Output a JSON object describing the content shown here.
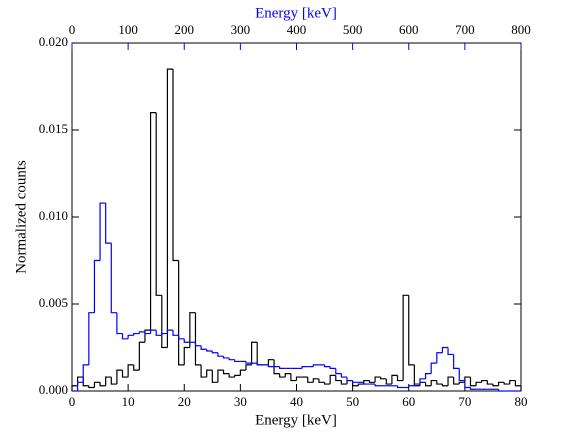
{
  "chart_data": {
    "type": "histogram",
    "xlabel": "Energy [keV]",
    "x2label": "Energy [keV]",
    "ylabel": "Normalized counts",
    "xlim": [
      0,
      80
    ],
    "xticks": [
      0,
      10,
      20,
      30,
      40,
      50,
      60,
      70,
      80
    ],
    "x2lim": [
      0,
      800
    ],
    "x2ticks": [
      0,
      100,
      200,
      300,
      400,
      500,
      600,
      700,
      800
    ],
    "x2color": "#0000ff",
    "ylim": [
      0,
      0.02
    ],
    "yticks": [
      {
        "value": 0,
        "label": "0.000"
      },
      {
        "value": 0.005,
        "label": "0.005"
      },
      {
        "value": 0.01,
        "label": "0.010"
      },
      {
        "value": 0.015,
        "label": "0.015"
      },
      {
        "value": 0.02,
        "label": "0.020"
      }
    ],
    "series": [
      {
        "color": "#000000",
        "axis": "x",
        "bins": [
          0,
          1,
          2,
          3,
          4,
          5,
          6,
          7,
          8,
          9,
          10,
          11,
          12,
          13,
          14,
          15,
          16,
          17,
          18,
          19,
          20,
          21,
          22,
          23,
          24,
          25,
          26,
          27,
          28,
          29,
          30,
          31,
          32,
          33,
          34,
          35,
          36,
          37,
          38,
          39,
          40,
          41,
          42,
          43,
          44,
          45,
          46,
          47,
          48,
          49,
          50,
          51,
          52,
          53,
          54,
          55,
          56,
          57,
          58,
          59,
          60,
          61,
          62,
          63,
          64,
          65,
          66,
          67,
          68,
          69,
          70,
          71,
          72,
          73,
          74,
          75,
          76,
          77,
          78,
          79,
          80
        ],
        "values": [
          0.0003,
          0.0008,
          0.0003,
          0.0002,
          0.0005,
          0.0003,
          0.0008,
          0.0004,
          0.0012,
          0.0008,
          0.0015,
          0.0012,
          0.0028,
          0.0035,
          0.016,
          0.0055,
          0.0025,
          0.0185,
          0.0075,
          0.0015,
          0.0025,
          0.0045,
          0.0015,
          0.0008,
          0.0012,
          0.0005,
          0.0012,
          0.001,
          0.0008,
          0.0009,
          0.0012,
          0.0015,
          0.0028,
          0.0015,
          0.0015,
          0.0018,
          0.001,
          0.0008,
          0.001,
          0.0006,
          0.0008,
          0.0008,
          0.0005,
          0.0007,
          0.0005,
          0.0004,
          0.0009,
          0.0006,
          0.0004,
          0.0006,
          0.0003,
          0.0004,
          0.0006,
          0.0005,
          0.0008,
          0.0007,
          0.0004,
          0.0009,
          0.0006,
          0.0055,
          0.0015,
          0.0003,
          0.0005,
          0.0003,
          0.0006,
          0.0004,
          0.0003,
          0.0008,
          0.0004,
          0.0005,
          0.0008,
          0.0003,
          0.0005,
          0.0006,
          0.0004,
          0.0003,
          0.0005,
          0.0004,
          0.0006,
          0.0003
        ]
      },
      {
        "color": "#0000ff",
        "axis": "x2",
        "bins": [
          0,
          10,
          20,
          30,
          40,
          50,
          60,
          70,
          80,
          90,
          100,
          110,
          120,
          130,
          140,
          150,
          160,
          170,
          180,
          190,
          200,
          210,
          220,
          230,
          240,
          250,
          260,
          270,
          280,
          290,
          300,
          310,
          320,
          330,
          340,
          350,
          360,
          370,
          380,
          390,
          400,
          410,
          420,
          430,
          440,
          450,
          460,
          470,
          480,
          490,
          500,
          510,
          520,
          530,
          540,
          550,
          560,
          570,
          580,
          590,
          600,
          610,
          620,
          630,
          640,
          650,
          660,
          670,
          680,
          690,
          700,
          710,
          720,
          730,
          740,
          750,
          760,
          770,
          780,
          790,
          800
        ],
        "values": [
          0,
          0.0005,
          0.0015,
          0.0045,
          0.0075,
          0.0108,
          0.0085,
          0.0045,
          0.0033,
          0.003,
          0.0032,
          0.0033,
          0.0034,
          0.0033,
          0.0035,
          0.0032,
          0.0033,
          0.0035,
          0.0032,
          0.003,
          0.0028,
          0.0028,
          0.0026,
          0.0024,
          0.0023,
          0.0022,
          0.002,
          0.0019,
          0.0018,
          0.0017,
          0.0017,
          0.0016,
          0.0016,
          0.0015,
          0.0015,
          0.0014,
          0.0014,
          0.0013,
          0.0013,
          0.0013,
          0.0013,
          0.0014,
          0.0014,
          0.0015,
          0.0015,
          0.0014,
          0.0013,
          0.001,
          0.0008,
          0.0006,
          0.0005,
          0.0005,
          0.0004,
          0.0004,
          0.0003,
          0.0003,
          0.0003,
          0.0003,
          0.0002,
          0.0002,
          0.0003,
          0.0004,
          0.0007,
          0.001,
          0.0016,
          0.0022,
          0.0025,
          0.0021,
          0.0013,
          0.0006,
          0.0002,
          0.0001,
          0.0001,
          0.0001,
          0.0001,
          0.0001,
          0,
          0,
          0,
          0
        ]
      }
    ]
  }
}
